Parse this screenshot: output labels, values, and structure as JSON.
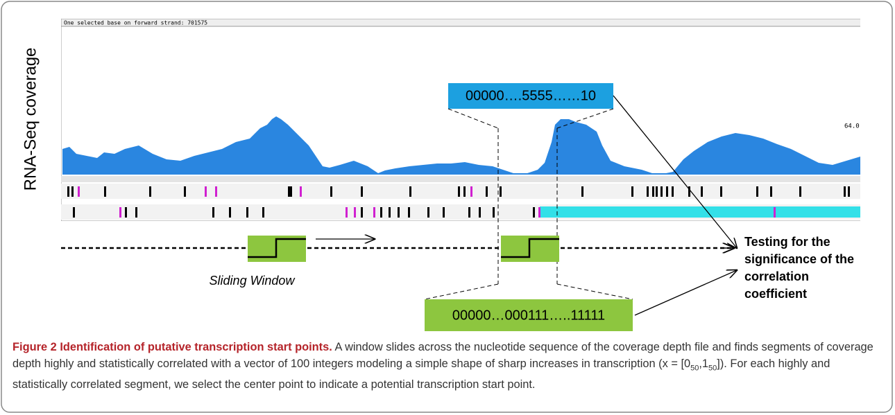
{
  "figure": {
    "screenshot": {
      "status_text": "One selected base on forward strand: 701575",
      "scale_label": "64.0"
    },
    "y_label": "RNA-Seq coverage",
    "coverage_vector": "00000….5555……10",
    "window_vector": "00000…000111…..11111",
    "window_label": "Sliding Window",
    "test_label": [
      "Testing for the",
      "significance of the",
      "correlation",
      "coefficient"
    ],
    "caption": {
      "label": "Figure 2",
      "title": "Identification of putative transcription start points.",
      "text_parts": [
        "A window slides across the nucleotide sequence of the coverage depth file and finds segments of coverage depth highly and statistically correlated with a vector of 100 integers modeling a simple shape of sharp increases in transcription (x = [0",
        "50",
        ",1",
        "50",
        "]). For each highly and statistically correlated segment, we select the center point to indicate a potential transcription start point."
      ]
    }
  }
}
